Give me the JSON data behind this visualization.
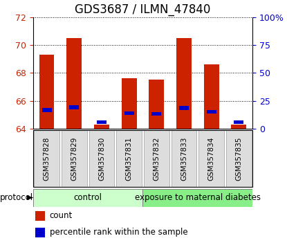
{
  "title": "GDS3687 / ILMN_47840",
  "samples": [
    "GSM357828",
    "GSM357829",
    "GSM357830",
    "GSM357831",
    "GSM357832",
    "GSM357833",
    "GSM357834",
    "GSM357835"
  ],
  "count_values": [
    69.3,
    70.5,
    64.3,
    67.6,
    67.5,
    70.5,
    68.6,
    64.3
  ],
  "percentile_bottom": [
    65.2,
    65.4,
    64.35,
    65.0,
    64.95,
    65.35,
    65.1,
    64.35
  ],
  "percentile_height": [
    0.3,
    0.3,
    0.25,
    0.25,
    0.25,
    0.3,
    0.25,
    0.25
  ],
  "ylim_left": [
    64,
    72
  ],
  "ylim_right": [
    0,
    100
  ],
  "yticks_left": [
    64,
    66,
    68,
    70,
    72
  ],
  "yticks_right": [
    0,
    25,
    50,
    75,
    100
  ],
  "ytick_labels_right": [
    "0",
    "25",
    "50",
    "75",
    "100%"
  ],
  "bar_color_red": "#CC2200",
  "bar_color_blue": "#0000CC",
  "control_color": "#CCFFCC",
  "diabetes_color": "#88EE88",
  "xlabel_color": "#CC2200",
  "ylabel_right_color": "#0000CC",
  "title_fontsize": 12,
  "bar_width": 0.55,
  "blue_bar_width": 0.35,
  "base": 64
}
